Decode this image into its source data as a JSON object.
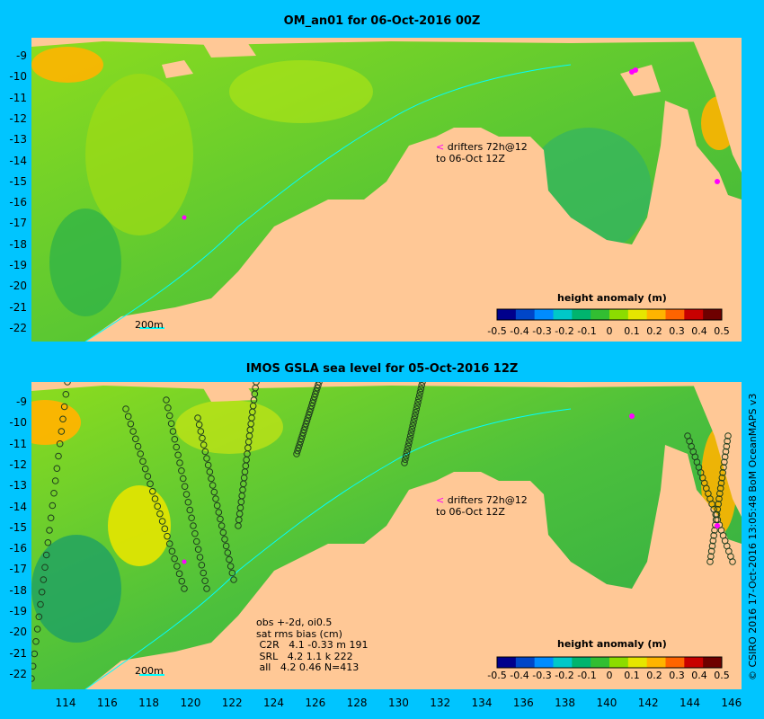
{
  "panel1": {
    "title": "OM_an01 for 06-Oct-2016 00Z",
    "drifter_text": [
      "drifters 72h@12",
      "to 06-Oct 12Z"
    ],
    "colorbar_title": "height anomaly (m)",
    "depth_label": "200m"
  },
  "panel2": {
    "title": "IMOS GSLA sea level  for 05-Oct-2016 12Z",
    "drifter_text": [
      "drifters 72h@12",
      "to 06-Oct 12Z"
    ],
    "colorbar_title": "height anomaly (m)",
    "depth_label": "200m",
    "stats": "obs +-2d, oi0.5\nsat rms bias (cm)\n C2R   4.1 -0.33 m 191\n SRL   4.2 1.1 k 222\n all   4.2 0.46 N=413"
  },
  "y_ticks": [
    "-9",
    "-10",
    "-11",
    "-12",
    "-13",
    "-14",
    "-15",
    "-16",
    "-17",
    "-18",
    "-19",
    "-20",
    "-21",
    "-22"
  ],
  "x_ticks": [
    "114",
    "116",
    "118",
    "120",
    "122",
    "124",
    "126",
    "128",
    "130",
    "132",
    "134",
    "136",
    "138",
    "140",
    "142",
    "144",
    "146"
  ],
  "colorbar_ticks": [
    "-0.5",
    "-0.4",
    "-0.3",
    "-0.2",
    "-0.1",
    "0",
    "0.1",
    "0.2",
    "0.3",
    "0.4",
    "0.5"
  ],
  "colorbar_colors": [
    "#00008c",
    "#0046c8",
    "#008cff",
    "#00c8c8",
    "#00b46e",
    "#32be32",
    "#8cdc00",
    "#e6e600",
    "#ffb400",
    "#ff6400",
    "#c80000",
    "#6e0000"
  ],
  "credit": "© CSIRO 2016  17-Oct-2016 13:05:48 BoM OceanMAPS v3",
  "colors": {
    "background": "#00c5ff",
    "land": "#ffc896",
    "ocean_base": "#5cc832",
    "drifter": "#ff00ff"
  }
}
